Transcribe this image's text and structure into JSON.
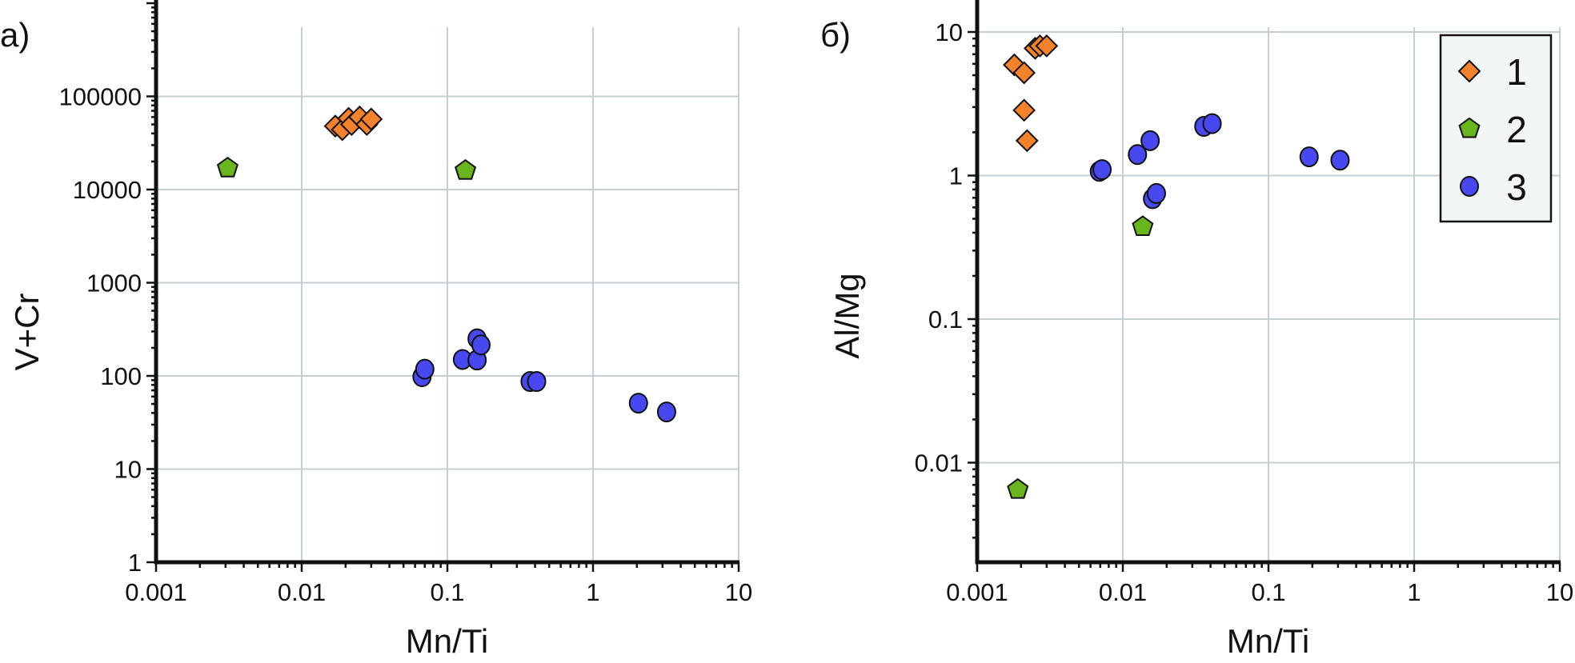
{
  "chart_data": [
    {
      "type": "scatter",
      "panel_label": "а)",
      "xlabel": "Mn/Ti",
      "ylabel": "V+Cr",
      "xscale": "log",
      "yscale": "log",
      "xlim": [
        0.001,
        10
      ],
      "ylim": [
        1,
        1000000
      ],
      "xticks": [
        "0.001",
        "0.01",
        "0.1",
        "1",
        "10"
      ],
      "yticks": [
        "1",
        "10",
        "100",
        "1000",
        "10000",
        "100000"
      ],
      "grid": true,
      "series": [
        {
          "name": "1",
          "marker": "diamond",
          "color": "#f4822a",
          "points": [
            [
              0.017,
              48000
            ],
            [
              0.019,
              44000
            ],
            [
              0.021,
              58000
            ],
            [
              0.022,
              50000
            ],
            [
              0.025,
              60000
            ],
            [
              0.028,
              50000
            ],
            [
              0.03,
              57000
            ]
          ]
        },
        {
          "name": "2",
          "marker": "pentagon",
          "color": "#6ab41e",
          "points": [
            [
              0.0031,
              17000
            ],
            [
              0.133,
              16000
            ]
          ]
        },
        {
          "name": "3",
          "marker": "circle",
          "color": "#4848f0",
          "points": [
            [
              0.067,
              98
            ],
            [
              0.07,
              118
            ],
            [
              0.127,
              150
            ],
            [
              0.16,
              148
            ],
            [
              0.16,
              250
            ],
            [
              0.17,
              215
            ],
            [
              0.37,
              87
            ],
            [
              0.41,
              87
            ],
            [
              2.05,
              51
            ],
            [
              3.2,
              41
            ]
          ]
        }
      ]
    },
    {
      "type": "scatter",
      "panel_label": "б)",
      "xlabel": "Mn/Ti",
      "ylabel": "Al/Mg",
      "xscale": "log",
      "yscale": "log",
      "xlim": [
        0.001,
        10
      ],
      "ylim": [
        0.002,
        15
      ],
      "xticks": [
        "0.001",
        "0.01",
        "0.1",
        "1",
        "10"
      ],
      "yticks": [
        "0.01",
        "0.1",
        "1",
        "10"
      ],
      "grid": true,
      "legend": {
        "position": "top-right",
        "entries": [
          "1",
          "2",
          "3"
        ]
      },
      "series": [
        {
          "name": "1",
          "marker": "diamond",
          "color": "#f4822a",
          "points": [
            [
              0.0018,
              5.9
            ],
            [
              0.0021,
              5.2
            ],
            [
              0.0025,
              7.7
            ],
            [
              0.0027,
              8.0
            ],
            [
              0.003,
              8.0
            ],
            [
              0.0021,
              2.85
            ],
            [
              0.0022,
              1.75
            ]
          ]
        },
        {
          "name": "2",
          "marker": "pentagon",
          "color": "#6ab41e",
          "points": [
            [
              0.0137,
              0.44
            ],
            [
              0.0019,
              0.0065
            ]
          ]
        },
        {
          "name": "3",
          "marker": "circle",
          "color": "#4848f0",
          "points": [
            [
              0.0069,
              1.07
            ],
            [
              0.0072,
              1.1
            ],
            [
              0.0126,
              1.4
            ],
            [
              0.0154,
              1.75
            ],
            [
              0.016,
              0.69
            ],
            [
              0.017,
              0.75
            ],
            [
              0.036,
              2.2
            ],
            [
              0.041,
              2.3
            ],
            [
              0.19,
              1.35
            ],
            [
              0.31,
              1.28
            ]
          ]
        }
      ]
    }
  ]
}
